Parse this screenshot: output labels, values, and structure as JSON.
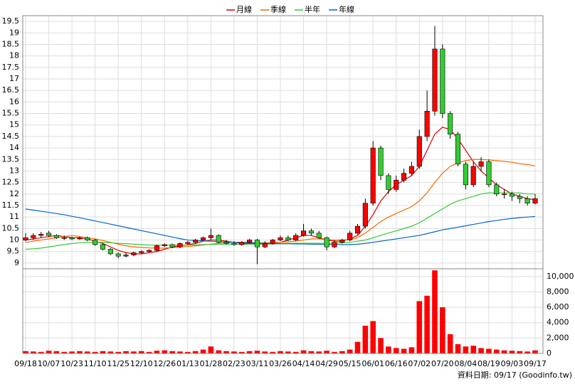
{
  "chart_data": [
    {
      "type": "candlestick",
      "categories": [
        "09/18",
        null,
        null,
        "10/07",
        null,
        null,
        "10/23",
        null,
        null,
        "11/10",
        null,
        null,
        "11/25",
        null,
        null,
        "12/10",
        null,
        null,
        "12/26",
        null,
        null,
        "01/13",
        null,
        null,
        "01/28",
        null,
        null,
        "02/23",
        null,
        null,
        "03/11",
        null,
        null,
        "03/26",
        null,
        null,
        "04/14",
        null,
        null,
        "04/29",
        null,
        null,
        "05/15",
        null,
        null,
        "06/01",
        null,
        null,
        "06/16",
        null,
        null,
        "07/02",
        null,
        null,
        "07/20",
        null,
        null,
        "08/04",
        null,
        null,
        "08/19",
        null,
        null,
        "09/03",
        null,
        null,
        "09/17"
      ],
      "open": [
        10.0,
        10.1,
        10.2,
        10.3,
        10.2,
        10.1,
        10.1,
        10.05,
        10.1,
        10.0,
        9.8,
        9.6,
        9.4,
        9.3,
        9.35,
        9.45,
        9.5,
        9.55,
        9.75,
        9.8,
        9.7,
        9.85,
        9.9,
        10.0,
        10.1,
        10.2,
        9.9,
        9.85,
        9.8,
        9.9,
        10.0,
        9.7,
        9.85,
        10.0,
        10.1,
        10.0,
        10.2,
        10.4,
        10.3,
        10.1,
        9.7,
        9.9,
        10.0,
        10.3,
        10.6,
        11.6,
        14.0,
        12.8,
        12.2,
        12.6,
        12.9,
        13.2,
        14.5,
        15.6,
        18.3,
        15.5,
        14.6,
        13.3,
        12.4,
        13.2,
        13.4,
        12.4,
        12.0,
        12.0,
        11.9,
        11.8,
        11.6
      ],
      "high": [
        10.3,
        10.3,
        10.35,
        10.4,
        10.25,
        10.2,
        10.15,
        10.15,
        10.15,
        10.05,
        9.85,
        9.65,
        9.45,
        9.45,
        9.5,
        9.55,
        9.6,
        9.8,
        9.85,
        9.85,
        9.9,
        9.95,
        10.05,
        10.15,
        10.5,
        10.25,
        10.0,
        9.95,
        9.95,
        10.05,
        10.05,
        9.95,
        10.05,
        10.2,
        10.2,
        10.3,
        10.7,
        10.5,
        10.4,
        10.15,
        10.0,
        10.05,
        10.4,
        10.7,
        11.8,
        14.3,
        14.1,
        12.9,
        12.8,
        13.1,
        13.4,
        14.8,
        16.5,
        19.3,
        18.5,
        15.6,
        14.7,
        13.4,
        13.4,
        13.6,
        13.5,
        12.5,
        12.2,
        12.1,
        12.0,
        11.9,
        12.0
      ],
      "low": [
        9.95,
        10.0,
        10.1,
        10.15,
        10.05,
        10.0,
        10.0,
        10.0,
        9.95,
        9.75,
        9.55,
        9.35,
        9.2,
        9.25,
        9.3,
        9.4,
        9.45,
        9.5,
        9.7,
        9.65,
        9.65,
        9.8,
        9.85,
        9.95,
        10.0,
        9.85,
        9.8,
        9.75,
        9.75,
        9.85,
        8.95,
        9.65,
        9.8,
        9.95,
        9.95,
        9.95,
        10.15,
        10.2,
        10.05,
        9.55,
        9.65,
        9.85,
        9.95,
        10.25,
        10.5,
        11.5,
        12.6,
        12.0,
        12.1,
        12.5,
        12.8,
        13.1,
        14.3,
        15.4,
        15.3,
        14.4,
        13.2,
        12.2,
        12.3,
        13.0,
        12.3,
        11.9,
        11.8,
        11.7,
        11.6,
        11.5,
        11.55
      ],
      "close": [
        10.1,
        10.2,
        10.25,
        10.2,
        10.1,
        10.1,
        10.05,
        10.1,
        10.0,
        9.8,
        9.6,
        9.4,
        9.3,
        9.35,
        9.45,
        9.5,
        9.55,
        9.75,
        9.8,
        9.7,
        9.85,
        9.9,
        10.0,
        10.1,
        10.2,
        9.9,
        9.85,
        9.8,
        9.9,
        10.0,
        9.7,
        9.85,
        10.0,
        10.1,
        10.0,
        10.2,
        10.4,
        10.3,
        10.1,
        9.7,
        9.9,
        10.0,
        10.3,
        10.6,
        11.6,
        14.0,
        12.8,
        12.2,
        12.6,
        12.9,
        13.2,
        14.5,
        15.6,
        18.3,
        15.5,
        14.6,
        13.3,
        12.4,
        13.2,
        13.4,
        12.4,
        12.0,
        12.0,
        11.9,
        11.8,
        11.6,
        11.8
      ],
      "up_color": "#ff0000",
      "down_color": "#33cc33",
      "series": [
        {
          "name": "月線",
          "color": "#dd0000",
          "values": [
            10.0,
            10.05,
            10.1,
            10.15,
            10.2,
            10.15,
            10.1,
            10.1,
            10.05,
            9.95,
            9.85,
            9.7,
            9.55,
            9.45,
            9.4,
            9.4,
            9.45,
            9.5,
            9.6,
            9.7,
            9.75,
            9.8,
            9.85,
            9.95,
            10.0,
            10.0,
            9.95,
            9.9,
            9.85,
            9.85,
            9.85,
            9.8,
            9.85,
            9.9,
            10.0,
            10.1,
            10.2,
            10.2,
            10.1,
            10.0,
            9.95,
            9.95,
            10.05,
            10.2,
            10.6,
            11.1,
            11.7,
            12.1,
            12.4,
            12.6,
            12.8,
            13.2,
            13.9,
            14.6,
            14.9,
            14.8,
            14.4,
            13.9,
            13.4,
            13.0,
            12.7,
            12.4,
            12.2,
            12.0,
            11.9,
            11.8,
            11.75
          ]
        },
        {
          "name": "季線",
          "color": "#ff6600",
          "values": [
            9.9,
            9.95,
            10.0,
            10.05,
            10.1,
            10.15,
            10.2,
            10.15,
            10.1,
            10.05,
            9.98,
            9.9,
            9.82,
            9.75,
            9.7,
            9.68,
            9.66,
            9.65,
            9.65,
            9.67,
            9.7,
            9.72,
            9.75,
            9.78,
            9.82,
            9.86,
            9.88,
            9.9,
            9.9,
            9.9,
            9.88,
            9.88,
            9.88,
            9.9,
            9.92,
            9.95,
            10.0,
            10.05,
            10.05,
            10.02,
            10.0,
            10.0,
            10.02,
            10.1,
            10.3,
            10.55,
            10.8,
            11.0,
            11.15,
            11.3,
            11.45,
            11.7,
            12.05,
            12.5,
            12.9,
            13.2,
            13.35,
            13.45,
            13.5,
            13.5,
            13.48,
            13.45,
            13.42,
            13.38,
            13.32,
            13.28,
            13.22
          ]
        },
        {
          "name": "半年",
          "color": "#33cc33",
          "values": [
            9.6,
            9.62,
            9.65,
            9.7,
            9.75,
            9.8,
            9.85,
            9.88,
            9.9,
            9.9,
            9.9,
            9.88,
            9.86,
            9.84,
            9.82,
            9.8,
            9.78,
            9.78,
            9.78,
            9.78,
            9.78,
            9.78,
            9.79,
            9.8,
            9.81,
            9.82,
            9.82,
            9.82,
            9.82,
            9.82,
            9.82,
            9.82,
            9.83,
            9.84,
            9.85,
            9.86,
            9.86,
            9.86,
            9.86,
            9.86,
            9.87,
            9.88,
            9.9,
            9.95,
            10.0,
            10.1,
            10.2,
            10.3,
            10.4,
            10.5,
            10.6,
            10.75,
            10.95,
            11.15,
            11.35,
            11.55,
            11.7,
            11.8,
            11.9,
            12.0,
            12.05,
            12.05,
            12.05,
            12.05,
            12.05,
            12.0,
            12.0
          ]
        },
        {
          "name": "年線",
          "color": "#0066cc",
          "values": [
            11.35,
            11.3,
            11.25,
            11.2,
            11.15,
            11.1,
            11.03,
            10.97,
            10.9,
            10.83,
            10.76,
            10.69,
            10.62,
            10.55,
            10.48,
            10.41,
            10.34,
            10.27,
            10.2,
            10.13,
            10.06,
            10.0,
            9.98,
            9.96,
            9.95,
            9.93,
            9.92,
            9.9,
            9.89,
            9.88,
            9.87,
            9.86,
            9.85,
            9.84,
            9.84,
            9.83,
            9.83,
            9.82,
            9.82,
            9.81,
            9.81,
            9.8,
            9.8,
            9.82,
            9.85,
            9.9,
            9.95,
            10.0,
            10.05,
            10.1,
            10.15,
            10.2,
            10.28,
            10.36,
            10.44,
            10.5,
            10.56,
            10.62,
            10.68,
            10.74,
            10.8,
            10.85,
            10.9,
            10.94,
            10.97,
            11.0,
            11.02
          ]
        }
      ],
      "ylim": [
        8.75,
        19.75
      ],
      "yticks": [
        9,
        9.5,
        10,
        10.5,
        11,
        11.5,
        12,
        12.5,
        13,
        13.5,
        14,
        14.5,
        15,
        15.5,
        16,
        16.5,
        17,
        17.5,
        18,
        18.5,
        19,
        19.5
      ],
      "grid": true,
      "source": "資料日期: 09/17  (Goodinfo.tw)"
    },
    {
      "type": "bar",
      "color": "#ff0000",
      "values": [
        300,
        250,
        200,
        350,
        300,
        200,
        250,
        300,
        250,
        200,
        300,
        250,
        200,
        300,
        250,
        300,
        200,
        350,
        400,
        300,
        250,
        200,
        300,
        500,
        900,
        400,
        300,
        250,
        200,
        300,
        350,
        250,
        200,
        300,
        250,
        200,
        400,
        300,
        250,
        350,
        200,
        300,
        500,
        1500,
        3600,
        4200,
        2000,
        900,
        700,
        600,
        800,
        6800,
        7500,
        10800,
        6000,
        2500,
        1200,
        900,
        1000,
        700,
        600,
        500,
        400,
        350,
        300,
        250,
        400
      ],
      "ylim": [
        0,
        11000
      ],
      "yticks": [
        0,
        {
          "value": 2000,
          "label": "2,000"
        },
        {
          "value": 4000,
          "label": "4,000"
        },
        {
          "value": 6000,
          "label": "6,000"
        },
        {
          "value": 8000,
          "label": "8,000"
        },
        {
          "value": 10000,
          "label": "10,000"
        }
      ],
      "grid": true
    }
  ]
}
